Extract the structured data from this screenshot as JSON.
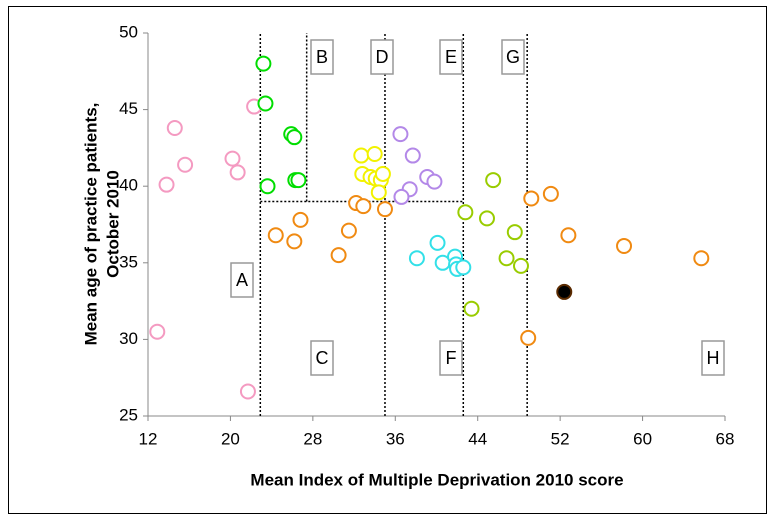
{
  "chart_data": {
    "type": "scatter",
    "xlabel": "Mean Index of Multiple Deprivation 2010 score",
    "ylabel": [
      "Mean age of practice patients,",
      "October 2010"
    ],
    "xlim": [
      12,
      68
    ],
    "xticks": [
      12,
      20,
      28,
      36,
      44,
      52,
      60,
      68
    ],
    "ylim": [
      25,
      50
    ],
    "yticks": [
      25,
      30,
      35,
      40,
      45,
      50
    ],
    "series": [
      {
        "color": "#f49ac1",
        "x": [
          12.9,
          14.6,
          13.8,
          15.6,
          20.2,
          20.7,
          22.3,
          21.7
        ],
        "values": [
          30.5,
          43.8,
          40.1,
          41.4,
          41.8,
          40.9,
          45.2,
          26.6
        ]
      },
      {
        "color": "#00dd00",
        "x": [
          23.2,
          23.4,
          23.6,
          25.9,
          26.2,
          26.3,
          26.6
        ],
        "values": [
          48.0,
          45.4,
          40.0,
          43.4,
          43.2,
          40.4,
          40.4
        ]
      },
      {
        "color": "#f2f200",
        "x": [
          32.7,
          34.0,
          32.8,
          33.6,
          34.1,
          34.6,
          34.8,
          34.4
        ],
        "values": [
          42.0,
          42.1,
          40.8,
          40.6,
          40.5,
          40.4,
          40.8,
          39.6
        ]
      },
      {
        "color": "#b388e8",
        "x": [
          36.5,
          37.7,
          37.4,
          36.6,
          39.1,
          39.8
        ],
        "values": [
          43.4,
          42.0,
          39.8,
          39.3,
          40.6,
          40.3
        ]
      },
      {
        "color": "#f08a12",
        "x": [
          24.4,
          26.2,
          26.8,
          30.5,
          31.5,
          32.2,
          32.9,
          35.0,
          49.2,
          51.1,
          52.8,
          58.2,
          65.7,
          48.9
        ],
        "values": [
          36.8,
          36.4,
          37.8,
          35.5,
          37.1,
          38.9,
          38.7,
          38.5,
          39.2,
          39.5,
          36.8,
          36.1,
          35.3,
          30.1
        ]
      },
      {
        "color": "#99cc00",
        "x": [
          42.8,
          44.9,
          45.5,
          47.6,
          46.8,
          48.2,
          43.4
        ],
        "values": [
          38.3,
          37.9,
          40.4,
          37.0,
          35.3,
          34.8,
          32.0
        ]
      },
      {
        "color": "#33e0e8",
        "x": [
          40.1,
          38.1,
          40.6,
          41.8,
          41.9,
          42.0,
          42.6
        ],
        "values": [
          36.3,
          35.3,
          35.0,
          35.4,
          34.9,
          34.6,
          34.7
        ]
      },
      {
        "color": "#000000",
        "filled": true,
        "x": [
          52.4
        ],
        "values": [
          33.1
        ]
      }
    ],
    "vlines": [
      {
        "x": 22.9,
        "y": [
          25,
          50
        ]
      },
      {
        "x": 27.4,
        "y": [
          39.0,
          50
        ]
      },
      {
        "x": 35.0,
        "y": [
          25,
          50
        ]
      },
      {
        "x": 42.6,
        "y": [
          25,
          50
        ]
      },
      {
        "x": 48.8,
        "y": [
          25,
          50
        ]
      }
    ],
    "hline": {
      "y": 39.0,
      "x": [
        22.9,
        42.6
      ]
    },
    "regions": [
      "A",
      "B",
      "C",
      "D",
      "E",
      "F",
      "G",
      "H"
    ]
  }
}
